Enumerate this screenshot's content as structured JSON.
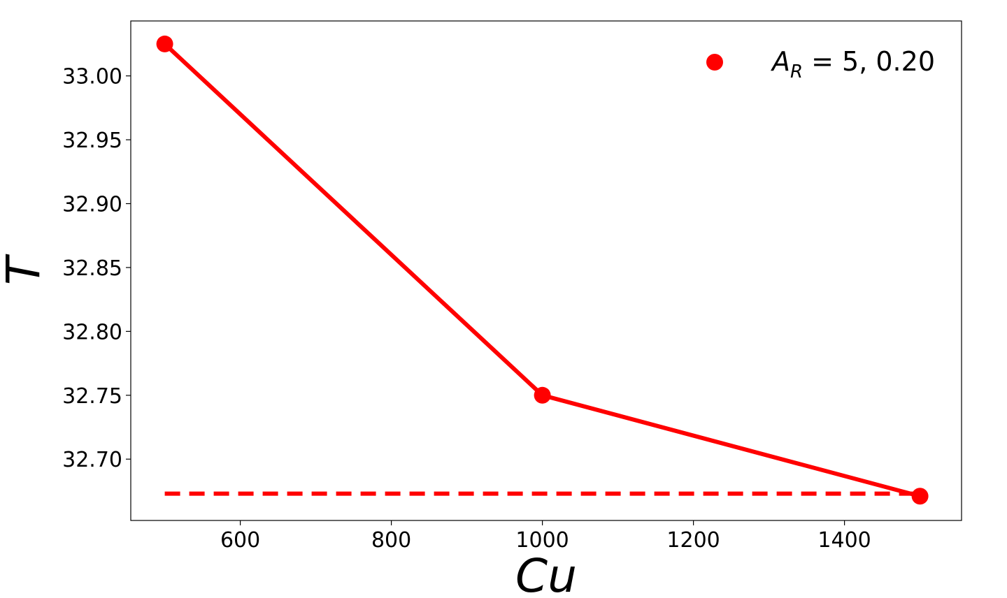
{
  "chart_data": {
    "type": "line",
    "title": "",
    "xlabel": "Cu",
    "ylabel": "T",
    "xlim": [
      455,
      1555
    ],
    "ylim": [
      32.652,
      33.043
    ],
    "x_ticks": [
      600,
      800,
      1000,
      1200,
      1400
    ],
    "y_ticks": [
      32.7,
      32.75,
      32.8,
      32.85,
      32.9,
      32.95,
      33.0
    ],
    "x_tick_labels": [
      "600",
      "800",
      "1000",
      "1200",
      "1400"
    ],
    "y_tick_labels": [
      "32.70",
      "32.75",
      "32.80",
      "32.85",
      "32.90",
      "32.95",
      "33.00"
    ],
    "grid": false,
    "legend_position": "top-right",
    "series": [
      {
        "name": "A_R = 5, 0.20",
        "legend": {
          "main": "A",
          "sub": "R",
          "rest": " = 5, 0.20"
        },
        "x": [
          500,
          1000,
          1500
        ],
        "y": [
          33.025,
          32.75,
          32.671
        ],
        "color": "#ff0000",
        "style": "solid",
        "marker": "circle"
      }
    ],
    "reference_line": {
      "type": "horizontal",
      "y": 32.673,
      "x_range": [
        500,
        1500
      ],
      "color": "#ff0000",
      "style": "dashed"
    }
  }
}
